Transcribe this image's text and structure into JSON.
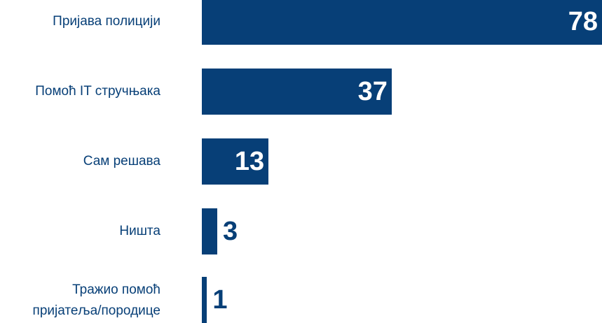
{
  "chart_data": {
    "type": "bar",
    "orientation": "horizontal",
    "categories": [
      "Пријава полицији",
      "Помоћ IT стручњака",
      "Сам решава",
      "Ништа",
      "Тражио помоћ\nпријатеља/породице"
    ],
    "values": [
      78,
      37,
      13,
      3,
      1
    ],
    "color": "#073f77"
  }
}
